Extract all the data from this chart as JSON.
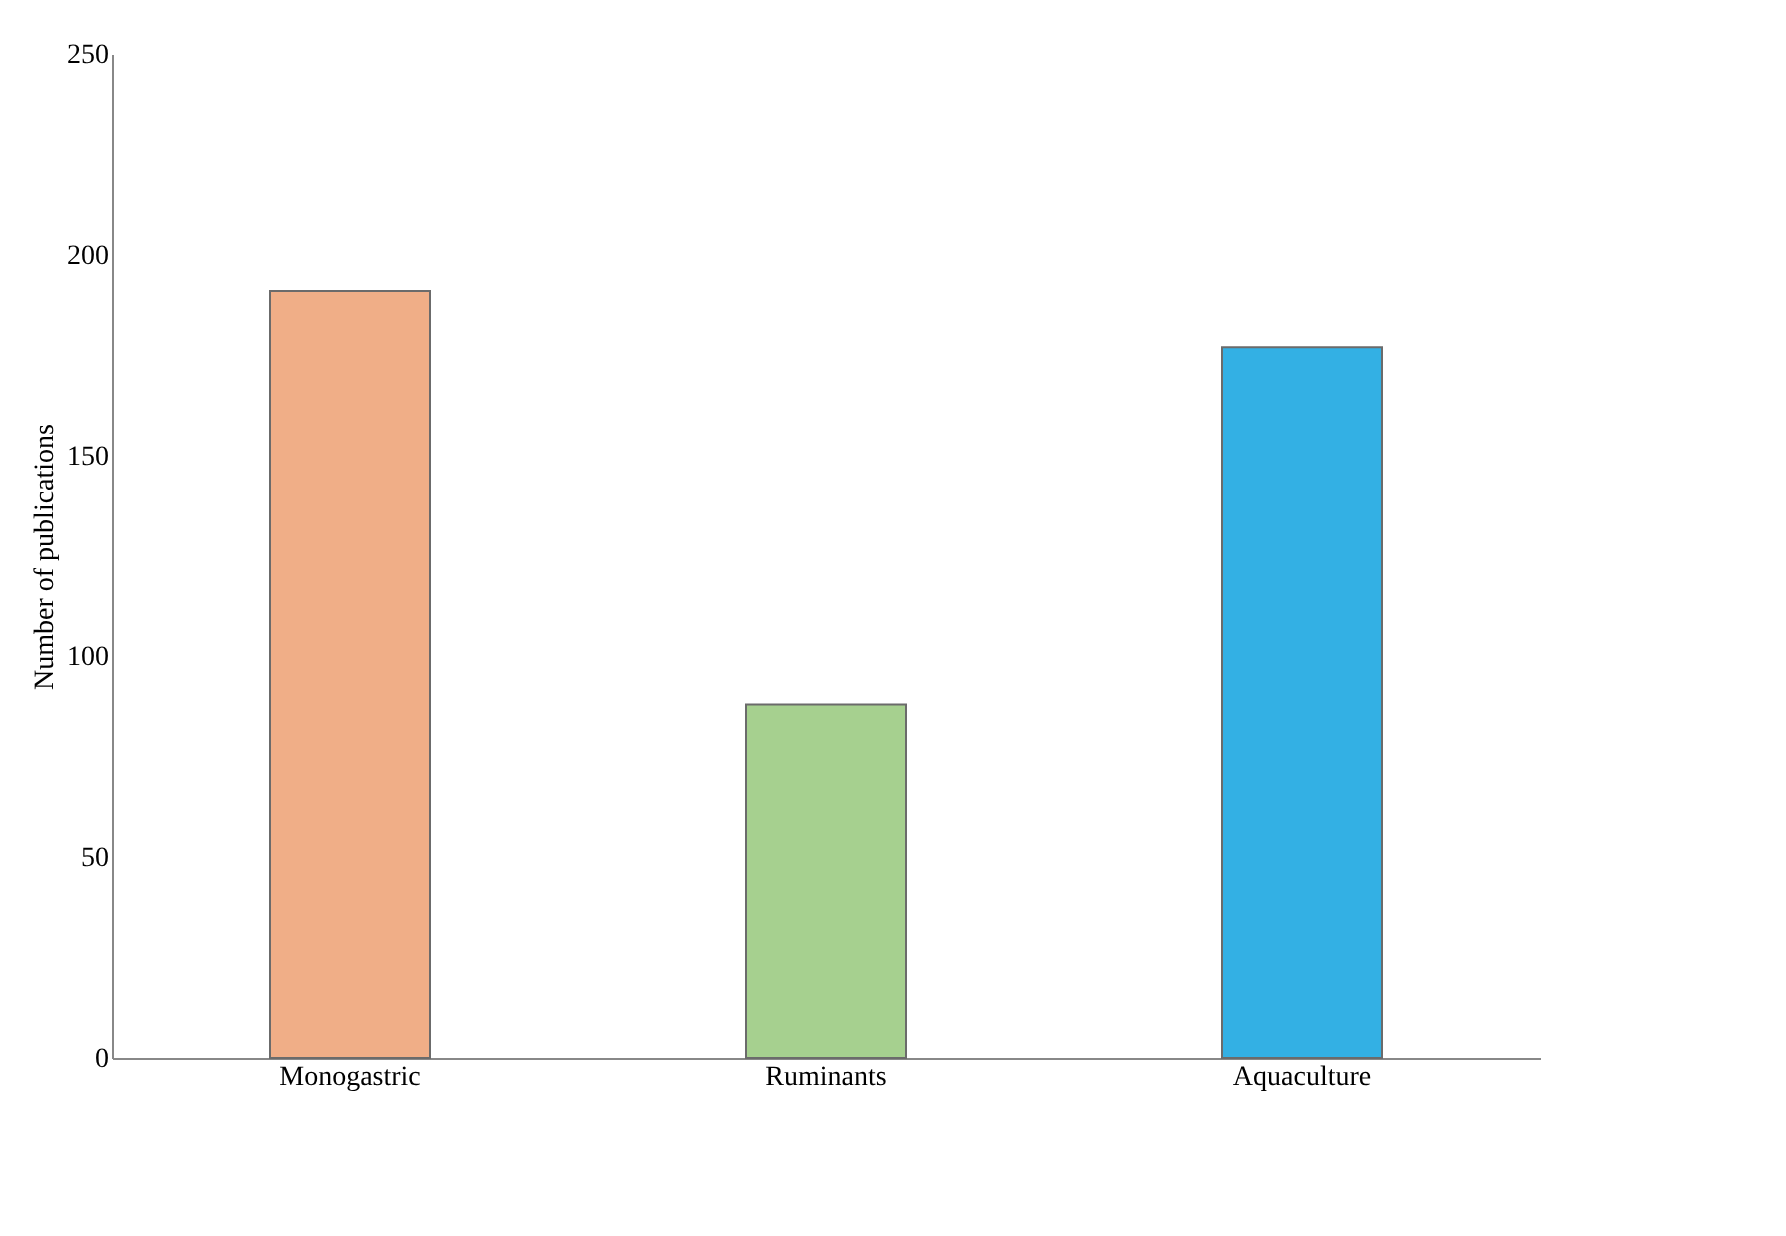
{
  "chart_data": {
    "type": "bar",
    "ylabel": "Number of publications",
    "categories": [
      "Monogastric",
      "Ruminants",
      "Aquaculture"
    ],
    "values": [
      191,
      88,
      177
    ],
    "colors": [
      "#f0ae87",
      "#a6d08f",
      "#33b0e4"
    ],
    "ylim": [
      0,
      250
    ],
    "yticks": [
      0,
      50,
      100,
      150,
      200,
      250
    ],
    "grid": false
  }
}
